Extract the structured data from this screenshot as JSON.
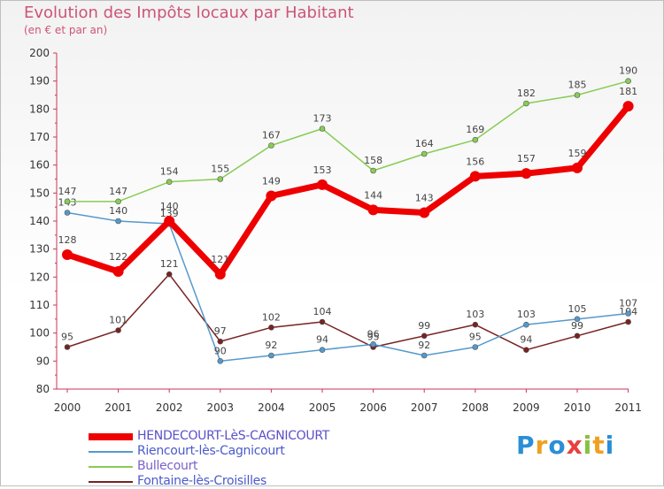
{
  "title": "Evolution des Impôts locaux par Habitant",
  "subtitle": "(en € et par an)",
  "chart_data": {
    "type": "line",
    "title": "Evolution des Impôts locaux par Habitant",
    "subtitle": "(en € et par an)",
    "xlabel": "",
    "ylabel": "",
    "x": [
      "2000",
      "2001",
      "2002",
      "2003",
      "2004",
      "2005",
      "2006",
      "2007",
      "2008",
      "2009",
      "2010",
      "2011"
    ],
    "ylim": [
      80,
      200
    ],
    "yticks": [
      80,
      90,
      100,
      110,
      120,
      130,
      140,
      150,
      160,
      170,
      180,
      190,
      200
    ],
    "grid": false,
    "legend_position": "bottom-left",
    "series": [
      {
        "name": "Fontaine-lès-Croisilles",
        "color": "#772222",
        "values": [
          95,
          101,
          121,
          97,
          102,
          104,
          95,
          99,
          103,
          94,
          99,
          104
        ]
      },
      {
        "name": "Riencourt-lès-Cagnicourt",
        "color": "#5599cc",
        "values": [
          143,
          140,
          139,
          90,
          92,
          94,
          96,
          92,
          95,
          103,
          105,
          107
        ]
      },
      {
        "name": "Bullecourt",
        "color": "#88cc55",
        "values": [
          147,
          147,
          154,
          155,
          167,
          173,
          158,
          164,
          169,
          182,
          185,
          190
        ]
      },
      {
        "name": "HENDECOURT-LèS-CAGNICOURT",
        "color": "#ee0000",
        "values": [
          128,
          122,
          140,
          121,
          149,
          153,
          144,
          143,
          156,
          157,
          159,
          181
        ]
      }
    ]
  },
  "legend": [
    {
      "label": "HENDECOURT-LèS-CAGNICOURT",
      "color": "#ee0000"
    },
    {
      "label": "Riencourt-lès-Cagnicourt",
      "color": "#5599cc"
    },
    {
      "label": "Bullecourt",
      "color": "#88cc55"
    },
    {
      "label": "Fontaine-lès-Croisilles",
      "color": "#772222"
    }
  ],
  "logo": {
    "text": "Proxiti",
    "letters": [
      {
        "char": "P",
        "color": "#2a8fd6"
      },
      {
        "char": "r",
        "color": "#f0a020"
      },
      {
        "char": "o",
        "color": "#2a8fd6"
      },
      {
        "char": "x",
        "color": "#e84040"
      },
      {
        "char": "i",
        "color": "#88c040"
      },
      {
        "char": "t",
        "color": "#f0a020"
      },
      {
        "char": "i",
        "color": "#2a8fd6"
      }
    ]
  }
}
